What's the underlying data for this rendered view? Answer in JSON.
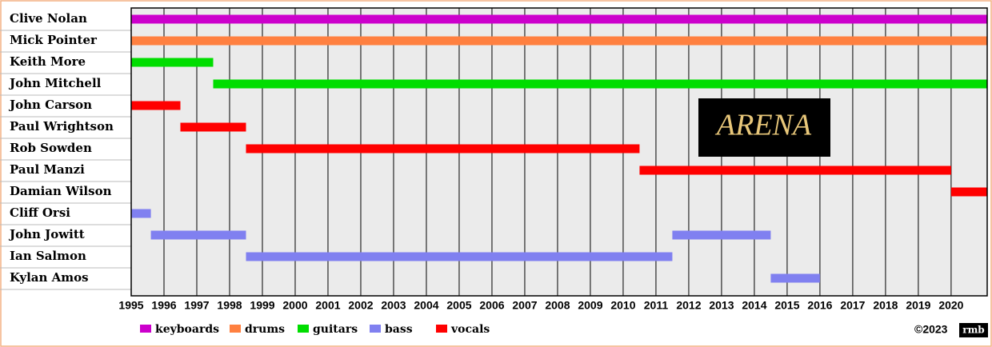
{
  "chart_data": {
    "type": "timeline",
    "categories": [
      "Clive Nolan",
      "Mick Pointer",
      "Keith More",
      "John Mitchell",
      "John Carson",
      "Paul Wrightson",
      "Rob Sowden",
      "Paul Manzi",
      "Damian Wilson",
      "Cliff Orsi",
      "John Jowitt",
      "Ian Salmon",
      "Kylan Amos"
    ],
    "series": [
      {
        "name": "keyboards",
        "color": "#cc00cc",
        "bars": [
          {
            "category": "Clive Nolan",
            "start": 1995,
            "end": 2021.1
          }
        ]
      },
      {
        "name": "drums",
        "color": "#ff8040",
        "bars": [
          {
            "category": "Mick Pointer",
            "start": 1995,
            "end": 2021.1
          }
        ]
      },
      {
        "name": "guitars",
        "color": "#00dd00",
        "bars": [
          {
            "category": "Keith More",
            "start": 1995,
            "end": 1997.5
          },
          {
            "category": "John Mitchell",
            "start": 1997.5,
            "end": 2021.1
          }
        ]
      },
      {
        "name": "bass",
        "color": "#8080f0",
        "bars": [
          {
            "category": "Cliff Orsi",
            "start": 1995,
            "end": 1995.6
          },
          {
            "category": "John Jowitt",
            "start": 1995.6,
            "end": 1998.5
          },
          {
            "category": "Ian Salmon",
            "start": 1998.5,
            "end": 2011.5
          },
          {
            "category": "John Jowitt",
            "start": 2011.5,
            "end": 2014.5
          },
          {
            "category": "Kylan Amos",
            "start": 2014.5,
            "end": 2016
          }
        ]
      },
      {
        "name": "vocals",
        "color": "#ff0000",
        "bars": [
          {
            "category": "John Carson",
            "start": 1995,
            "end": 1996.5
          },
          {
            "category": "Paul Wrightson",
            "start": 1996.5,
            "end": 1998.5
          },
          {
            "category": "Rob Sowden",
            "start": 1998.5,
            "end": 2010.5
          },
          {
            "category": "Paul Manzi",
            "start": 2010.5,
            "end": 2020
          },
          {
            "category": "Damian Wilson",
            "start": 2020,
            "end": 2021.1
          }
        ]
      }
    ],
    "xlim": [
      1995,
      2021.1
    ],
    "xticks": [
      1995,
      1996,
      1997,
      1998,
      1999,
      2000,
      2001,
      2002,
      2003,
      2004,
      2005,
      2006,
      2007,
      2008,
      2009,
      2010,
      2011,
      2012,
      2013,
      2014,
      2015,
      2016,
      2017,
      2018,
      2019,
      2020
    ],
    "grid": true,
    "logo": "ARENA",
    "copyright": "©2023",
    "signature": "rmb"
  }
}
